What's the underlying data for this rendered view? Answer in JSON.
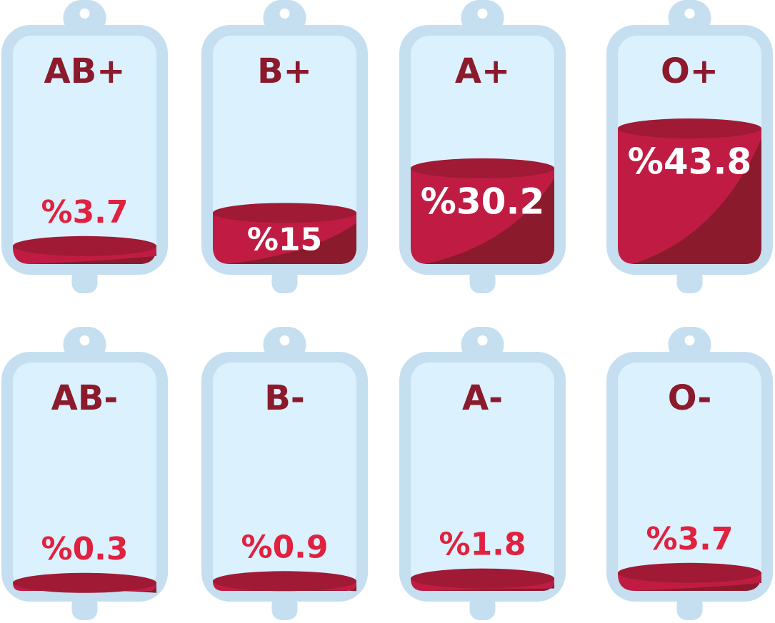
{
  "chart_data": {
    "type": "blood-bag",
    "categories": [
      "AB+",
      "B+",
      "A+",
      "O+",
      "AB-",
      "B-",
      "A-",
      "O-"
    ],
    "values": [
      3.7,
      15,
      30.2,
      43.8,
      0.3,
      0.9,
      1.8,
      3.7
    ],
    "value_labels": [
      "%3.7",
      "%15",
      "%30.2",
      "%43.8",
      "%0.3",
      "%0.9",
      "%1.8",
      "%3.7"
    ],
    "color": "#c01c43"
  }
}
